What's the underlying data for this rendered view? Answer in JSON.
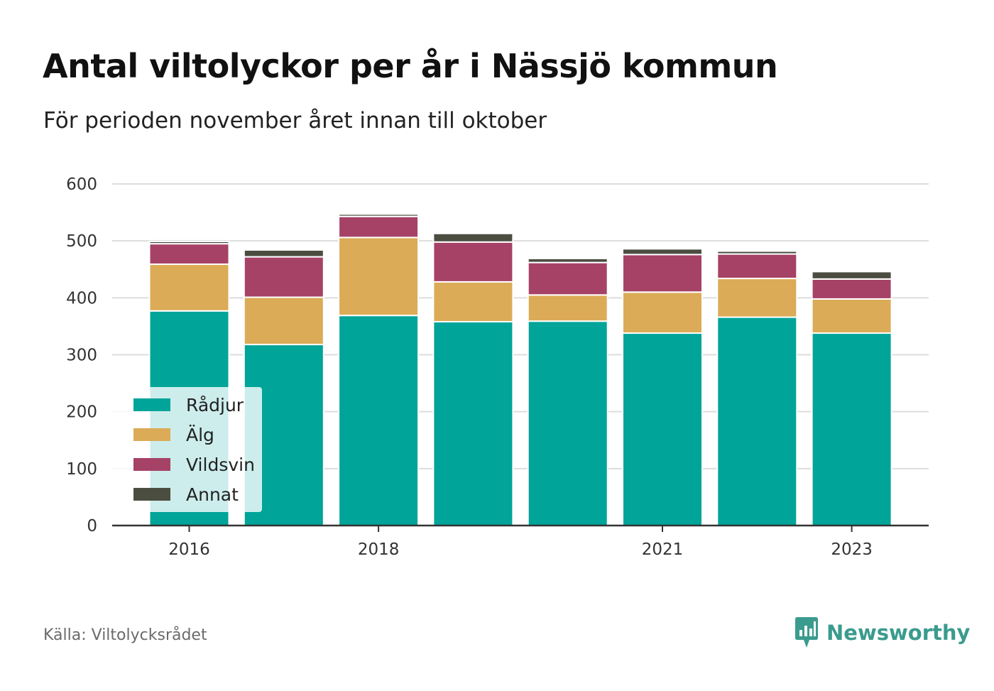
{
  "title": "Antal viltolyckor per år i Nässjö kommun",
  "subtitle": "För perioden november året innan till oktober",
  "source": "Källa: Viltolycksrådet",
  "brand": "Newsworthy",
  "colors": {
    "Rådjur": "#00a499",
    "Älg": "#dbab57",
    "Vildsvin": "#a64266",
    "Annat": "#4b4d40",
    "grid": "#dddddd",
    "axis": "#333333",
    "brand": "#3a9b8e"
  },
  "chart_data": {
    "type": "bar",
    "stacked": true,
    "categories": [
      "2016",
      "2017",
      "2018",
      "2019",
      "2020",
      "2021",
      "2022",
      "2023"
    ],
    "x_tick_labels": [
      "2016",
      "",
      "2018",
      "",
      "",
      "2021",
      "",
      "2023"
    ],
    "ylim": [
      0,
      600
    ],
    "yticks": [
      0,
      100,
      200,
      300,
      400,
      500,
      600
    ],
    "grid": true,
    "legend_position": "bottom-left",
    "series": [
      {
        "name": "Rådjur",
        "values": [
          377,
          318,
          369,
          358,
          359,
          338,
          366,
          338
        ]
      },
      {
        "name": "Älg",
        "values": [
          82,
          83,
          137,
          70,
          46,
          72,
          68,
          60
        ]
      },
      {
        "name": "Vildsvin",
        "values": [
          36,
          71,
          37,
          70,
          57,
          66,
          43,
          35
        ]
      },
      {
        "name": "Annat",
        "values": [
          4,
          12,
          4,
          15,
          7,
          10,
          5,
          13
        ]
      }
    ]
  }
}
